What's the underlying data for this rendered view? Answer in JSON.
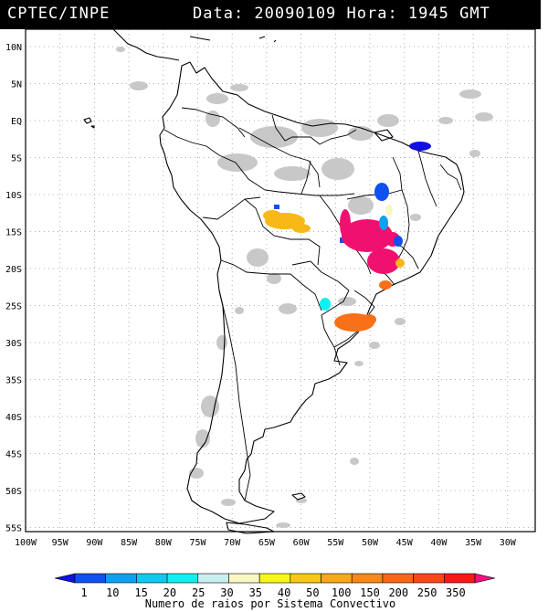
{
  "header": {
    "source": "CPTEC/INPE",
    "datetime": "Data: 20090109 Hora: 1945 GMT"
  },
  "lat_labels": [
    "10N",
    "5N",
    "EQ",
    "5S",
    "10S",
    "15S",
    "20S",
    "25S",
    "30S",
    "35S",
    "40S",
    "45S",
    "50S",
    "55S"
  ],
  "lon_labels": [
    "100W",
    "95W",
    "90W",
    "85W",
    "80W",
    "75W",
    "70W",
    "65W",
    "60W",
    "55W",
    "50W",
    "45W",
    "40W",
    "35W",
    "30W"
  ],
  "colorbar": {
    "title": "Numero de raios por Sistema Convectivo",
    "ticks": [
      "1",
      "10",
      "15",
      "20",
      "25",
      "30",
      "35",
      "40",
      "50",
      "100",
      "150",
      "200",
      "250",
      "350"
    ],
    "colors": [
      "#1010e0",
      "#1050f0",
      "#10a0f0",
      "#10c8f0",
      "#10f0f0",
      "#c8f0f0",
      "#f8f8c0",
      "#f8f818",
      "#f8c818",
      "#f8a818",
      "#f88818",
      "#f86818",
      "#f84818",
      "#f81818",
      "#f01080"
    ]
  }
}
